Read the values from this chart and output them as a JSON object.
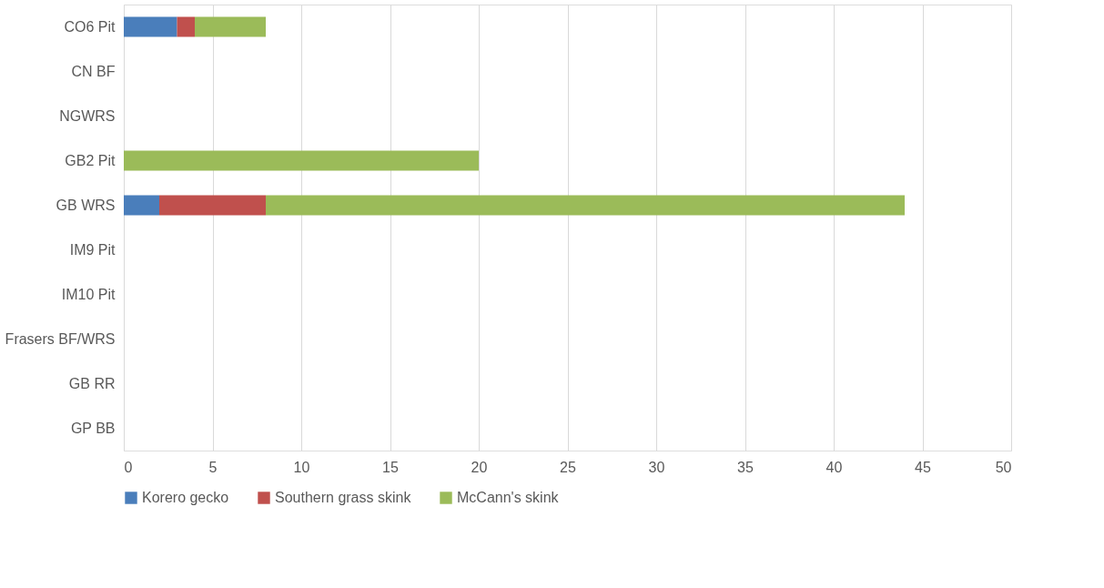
{
  "chart_data": {
    "type": "bar",
    "orientation": "horizontal",
    "stacked": true,
    "categories": [
      "CO6 Pit",
      "CN BF",
      "NGWRS",
      "GB2 Pit",
      "GB WRS",
      "IM9 Pit",
      "IM10 Pit",
      "Frasers BF/WRS",
      "GB RR",
      "GP BB"
    ],
    "series": [
      {
        "name": "Korero gecko",
        "color": "#4a7ebb",
        "values": [
          3,
          null,
          null,
          null,
          2,
          null,
          null,
          null,
          null,
          null
        ]
      },
      {
        "name": "Southern grass skink",
        "color": "#c0504d",
        "values": [
          1,
          null,
          null,
          null,
          6,
          null,
          null,
          null,
          null,
          null
        ]
      },
      {
        "name": "McCann's skink",
        "color": "#9bbb59",
        "values": [
          4,
          null,
          null,
          20,
          36,
          null,
          null,
          null,
          null,
          null
        ]
      }
    ],
    "xlim": [
      0,
      50
    ],
    "xticks": [
      0,
      5,
      10,
      15,
      20,
      25,
      30,
      35,
      40,
      45,
      50
    ],
    "grid": "x",
    "legend": "bottom"
  }
}
